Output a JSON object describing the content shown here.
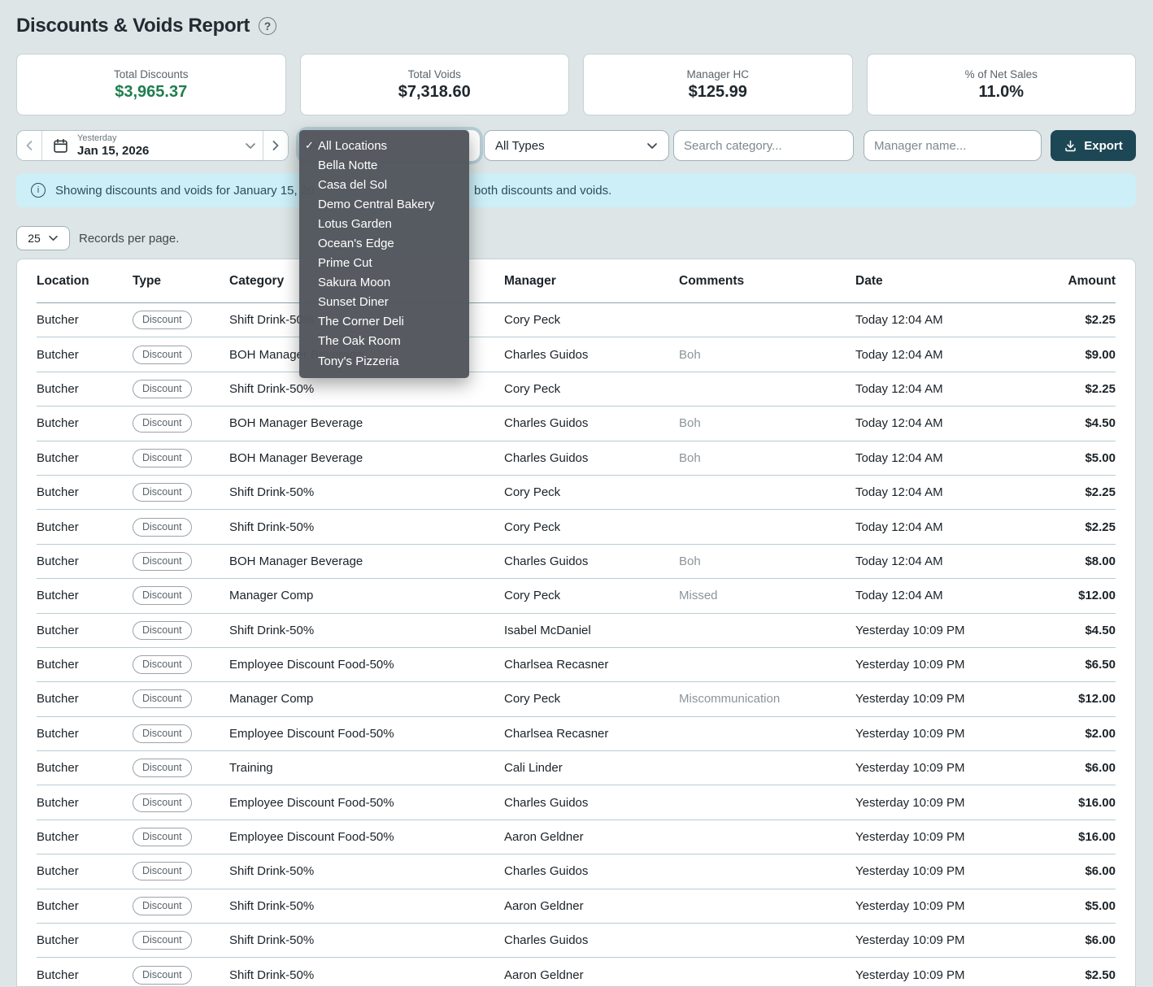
{
  "page": {
    "title": "Discounts & Voids Report",
    "help_icon": "?"
  },
  "summary_cards": [
    {
      "label": "Total Discounts",
      "value": "$3,965.37",
      "color": "#1e7e4f"
    },
    {
      "label": "Total Voids",
      "value": "$7,318.60",
      "color": "#20282e"
    },
    {
      "label": "Manager HC",
      "value": "$125.99",
      "color": "#20282e"
    },
    {
      "label": "% of Net Sales",
      "value": "11.0%",
      "color": "#20282e"
    }
  ],
  "filters": {
    "date_label": "Yesterday",
    "date_value": "Jan 15, 2026",
    "type_selected": "All Types",
    "category_placeholder": "Search category...",
    "manager_placeholder": "Manager name...",
    "export_label": "Export"
  },
  "location_dropdown": {
    "selected": "All Locations",
    "checkmark": "✓",
    "options": [
      "All Locations",
      "Bella Notte",
      "Casa del Sol",
      "Demo Central Bakery",
      "Lotus Garden",
      "Ocean's Edge",
      "Prime Cut",
      "Sakura Moon",
      "Sunset Diner",
      "The Corner Deli",
      "The Oak Room",
      "Tony's Pizzeria"
    ]
  },
  "banner": {
    "text_left": "Showing discounts and voids for January 15, 20",
    "text_right": "both discounts and voids."
  },
  "pagination": {
    "records_per_page": "25",
    "records_label": "Records per page."
  },
  "table": {
    "columns": [
      "Location",
      "Type",
      "Category",
      "Manager",
      "Comments",
      "Date",
      "Amount"
    ],
    "rows": [
      {
        "location": "Butcher",
        "type": "Discount",
        "category": "Shift Drink-50%",
        "manager": "Cory Peck",
        "comments": "",
        "date": "Today 12:04 AM",
        "amount": "$2.25"
      },
      {
        "location": "Butcher",
        "type": "Discount",
        "category": "BOH Manager Beverage",
        "manager": "Charles Guidos",
        "comments": "Boh",
        "date": "Today 12:04 AM",
        "amount": "$9.00"
      },
      {
        "location": "Butcher",
        "type": "Discount",
        "category": "Shift Drink-50%",
        "manager": "Cory Peck",
        "comments": "",
        "date": "Today 12:04 AM",
        "amount": "$2.25"
      },
      {
        "location": "Butcher",
        "type": "Discount",
        "category": "BOH Manager Beverage",
        "manager": "Charles Guidos",
        "comments": "Boh",
        "date": "Today 12:04 AM",
        "amount": "$4.50"
      },
      {
        "location": "Butcher",
        "type": "Discount",
        "category": "BOH Manager Beverage",
        "manager": "Charles Guidos",
        "comments": "Boh",
        "date": "Today 12:04 AM",
        "amount": "$5.00"
      },
      {
        "location": "Butcher",
        "type": "Discount",
        "category": "Shift Drink-50%",
        "manager": "Cory Peck",
        "comments": "",
        "date": "Today 12:04 AM",
        "amount": "$2.25"
      },
      {
        "location": "Butcher",
        "type": "Discount",
        "category": "Shift Drink-50%",
        "manager": "Cory Peck",
        "comments": "",
        "date": "Today 12:04 AM",
        "amount": "$2.25"
      },
      {
        "location": "Butcher",
        "type": "Discount",
        "category": "BOH Manager Beverage",
        "manager": "Charles Guidos",
        "comments": "Boh",
        "date": "Today 12:04 AM",
        "amount": "$8.00"
      },
      {
        "location": "Butcher",
        "type": "Discount",
        "category": "Manager Comp",
        "manager": "Cory Peck",
        "comments": "Missed",
        "date": "Today 12:04 AM",
        "amount": "$12.00"
      },
      {
        "location": "Butcher",
        "type": "Discount",
        "category": "Shift Drink-50%",
        "manager": "Isabel McDaniel",
        "comments": "",
        "date": "Yesterday 10:09 PM",
        "amount": "$4.50"
      },
      {
        "location": "Butcher",
        "type": "Discount",
        "category": "Employee Discount Food-50%",
        "manager": "Charlsea Recasner",
        "comments": "",
        "date": "Yesterday 10:09 PM",
        "amount": "$6.50"
      },
      {
        "location": "Butcher",
        "type": "Discount",
        "category": "Manager Comp",
        "manager": "Cory Peck",
        "comments": "Miscommunication",
        "date": "Yesterday 10:09 PM",
        "amount": "$12.00"
      },
      {
        "location": "Butcher",
        "type": "Discount",
        "category": "Employee Discount Food-50%",
        "manager": "Charlsea Recasner",
        "comments": "",
        "date": "Yesterday 10:09 PM",
        "amount": "$2.00"
      },
      {
        "location": "Butcher",
        "type": "Discount",
        "category": "Training",
        "manager": "Cali Linder",
        "comments": "",
        "date": "Yesterday 10:09 PM",
        "amount": "$6.00"
      },
      {
        "location": "Butcher",
        "type": "Discount",
        "category": "Employee Discount Food-50%",
        "manager": "Charles Guidos",
        "comments": "",
        "date": "Yesterday 10:09 PM",
        "amount": "$16.00"
      },
      {
        "location": "Butcher",
        "type": "Discount",
        "category": "Employee Discount Food-50%",
        "manager": "Aaron Geldner",
        "comments": "",
        "date": "Yesterday 10:09 PM",
        "amount": "$16.00"
      },
      {
        "location": "Butcher",
        "type": "Discount",
        "category": "Shift Drink-50%",
        "manager": "Charles Guidos",
        "comments": "",
        "date": "Yesterday 10:09 PM",
        "amount": "$6.00"
      },
      {
        "location": "Butcher",
        "type": "Discount",
        "category": "Shift Drink-50%",
        "manager": "Aaron Geldner",
        "comments": "",
        "date": "Yesterday 10:09 PM",
        "amount": "$5.00"
      },
      {
        "location": "Butcher",
        "type": "Discount",
        "category": "Shift Drink-50%",
        "manager": "Charles Guidos",
        "comments": "",
        "date": "Yesterday 10:09 PM",
        "amount": "$6.00"
      },
      {
        "location": "Butcher",
        "type": "Discount",
        "category": "Shift Drink-50%",
        "manager": "Aaron Geldner",
        "comments": "",
        "date": "Yesterday 10:09 PM",
        "amount": "$2.50"
      }
    ]
  },
  "colors": {
    "accent_green": "#1e7e4f",
    "export_button": "#1d4754",
    "banner_bg": "#cdeff8",
    "dropdown_bg": "#52565c",
    "page_bg": "#dde5e6"
  }
}
